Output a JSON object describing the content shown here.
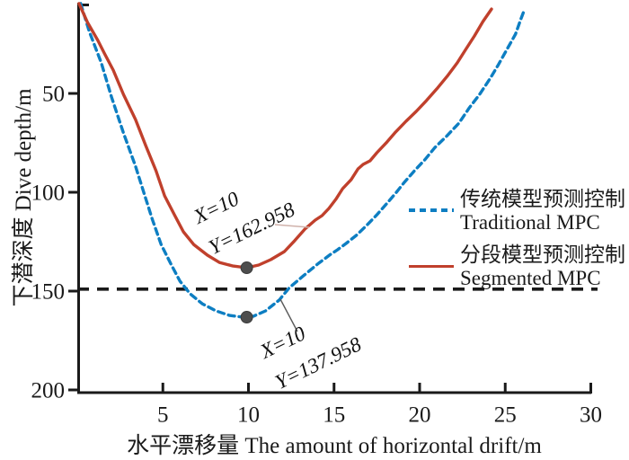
{
  "chart_data": {
    "type": "line",
    "title": "",
    "xlabel": "水平漂移量 The amount of horizontal drift/m",
    "ylabel": "下潜深度 Dive depth/m",
    "x_ticks": [
      5,
      10,
      15,
      20,
      25,
      30
    ],
    "y_ticks": [
      50,
      100,
      150,
      200
    ],
    "xlim": [
      0,
      30
    ],
    "ylim": [
      0,
      205
    ],
    "y_axis_inverted_depth": true,
    "grid": false,
    "axis_color": "#1a1a1a",
    "series": [
      {
        "id": "traditional",
        "name_zh": "传统模型预测控制",
        "name_en": "Traditional MPC",
        "style": "dashed",
        "color": "#0d7ec2",
        "points": [
          [
            0.2,
            4.5
          ],
          [
            0.7,
            18.6
          ],
          [
            1.4,
            34.5
          ],
          [
            2.0,
            51.8
          ],
          [
            2.7,
            70
          ],
          [
            3.4,
            86.8
          ],
          [
            3.9,
            100.5
          ],
          [
            4.4,
            114.1
          ],
          [
            4.9,
            126.4
          ],
          [
            5.5,
            136.8
          ],
          [
            6.0,
            145
          ],
          [
            6.6,
            151.4
          ],
          [
            7.3,
            156.4
          ],
          [
            8.1,
            160
          ],
          [
            8.9,
            162.3
          ],
          [
            9.7,
            163.2
          ],
          [
            10.3,
            162.7
          ],
          [
            11.0,
            160
          ],
          [
            11.8,
            154.5
          ],
          [
            12.4,
            148.2
          ],
          [
            13.2,
            142.3
          ],
          [
            14.1,
            135.9
          ],
          [
            14.8,
            131.4
          ],
          [
            15.2,
            129.1
          ],
          [
            15.7,
            125.9
          ],
          [
            16.3,
            121.8
          ],
          [
            16.9,
            116.8
          ],
          [
            17.5,
            111.4
          ],
          [
            18.1,
            105.5
          ],
          [
            18.6,
            100.5
          ],
          [
            19.1,
            95
          ],
          [
            19.7,
            89.1
          ],
          [
            20.3,
            83.6
          ],
          [
            20.9,
            77.3
          ],
          [
            21.6,
            71.4
          ],
          [
            22.3,
            65
          ],
          [
            22.9,
            57.3
          ],
          [
            23.5,
            50.5
          ],
          [
            24.1,
            42.7
          ],
          [
            24.6,
            35.5
          ],
          [
            25.1,
            27.7
          ],
          [
            25.6,
            20
          ],
          [
            25.9,
            12.7
          ],
          [
            26.1,
            8.2
          ]
        ]
      },
      {
        "id": "segmented",
        "name_zh": "分段模型预测控制",
        "name_en": "Segmented MPC",
        "style": "solid",
        "color": "#c0402c",
        "points": [
          [
            0.1,
            4.5
          ],
          [
            0.6,
            14.1
          ],
          [
            1.2,
            23.2
          ],
          [
            1.6,
            30
          ],
          [
            2.1,
            38.2
          ],
          [
            2.7,
            50.5
          ],
          [
            3.4,
            63.2
          ],
          [
            4.0,
            76.4
          ],
          [
            4.6,
            89.1
          ],
          [
            5.1,
            101.8
          ],
          [
            5.7,
            111.8
          ],
          [
            6.2,
            120
          ],
          [
            6.8,
            126.4
          ],
          [
            7.6,
            131.8
          ],
          [
            8.3,
            135.5
          ],
          [
            9.1,
            137.3
          ],
          [
            9.9,
            138.2
          ],
          [
            10.6,
            136.8
          ],
          [
            11.3,
            134.1
          ],
          [
            12.1,
            130
          ],
          [
            12.7,
            124.5
          ],
          [
            13.3,
            118.6
          ],
          [
            13.9,
            114.1
          ],
          [
            14.3,
            111.8
          ],
          [
            14.7,
            108.2
          ],
          [
            15.1,
            103.6
          ],
          [
            15.5,
            98.2
          ],
          [
            16.0,
            93.6
          ],
          [
            16.4,
            88.2
          ],
          [
            16.7,
            85.9
          ],
          [
            17.1,
            84.1
          ],
          [
            17.5,
            80
          ],
          [
            18.1,
            74.5
          ],
          [
            18.6,
            69.5
          ],
          [
            19.2,
            64.1
          ],
          [
            19.8,
            59.1
          ],
          [
            20.4,
            53.6
          ],
          [
            21.0,
            47.7
          ],
          [
            21.6,
            41.4
          ],
          [
            22.2,
            34.5
          ],
          [
            22.7,
            27.7
          ],
          [
            23.2,
            20.9
          ],
          [
            23.7,
            13.6
          ],
          [
            24.2,
            7.3
          ]
        ]
      }
    ],
    "threshold_line": {
      "depth": 149,
      "style": "dashed",
      "color": "#1a1a1a"
    },
    "markers": [
      {
        "series": "segmented",
        "x": 9.9,
        "depth": 138.2,
        "color": "#4d4d4d"
      },
      {
        "series": "traditional",
        "x": 9.9,
        "depth": 163.2,
        "color": "#4d4d4d"
      }
    ],
    "annotations": [
      {
        "lines": [
          "X=10",
          "Y=162.958"
        ]
      },
      {
        "lines": [
          "X=10",
          "Y=137.958"
        ]
      }
    ],
    "legend_position": "right-middle"
  }
}
